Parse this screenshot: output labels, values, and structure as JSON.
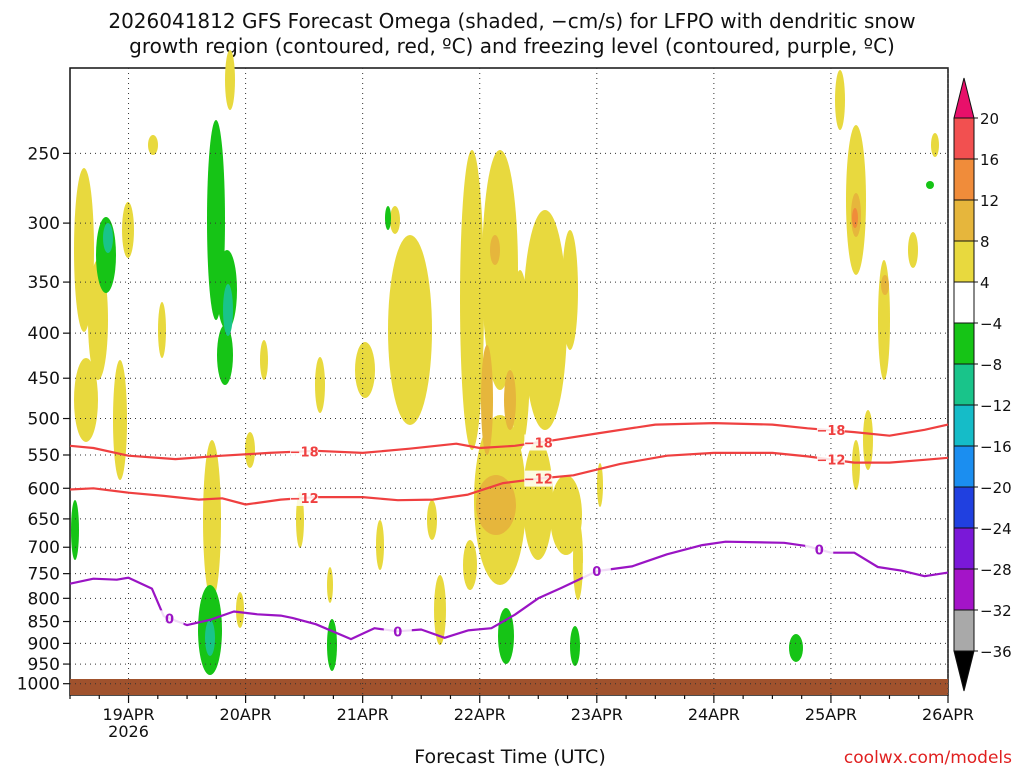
{
  "chart_data": {
    "type": "heatmap",
    "title_line1": "2026041812 GFS Forecast Omega (shaded, −cm/s) for LFPO with dendritic snow",
    "title_line2": "growth region (contoured, red, ºC) and freezing level (contoured, purple, ºC)",
    "xlabel": "Forecast Time (UTC)",
    "credit": "coolwx.com/models",
    "x_ticks": [
      {
        "t": 0,
        "label": "19APR",
        "sub": "2026"
      },
      {
        "t": 1,
        "label": "20APR",
        "sub": ""
      },
      {
        "t": 2,
        "label": "21APR",
        "sub": ""
      },
      {
        "t": 3,
        "label": "22APR",
        "sub": ""
      },
      {
        "t": 4,
        "label": "23APR",
        "sub": ""
      },
      {
        "t": 5,
        "label": "24APR",
        "sub": ""
      },
      {
        "t": 6,
        "label": "25APR",
        "sub": ""
      },
      {
        "t": 7,
        "label": "26APR",
        "sub": ""
      }
    ],
    "xlim": [
      -0.5,
      7.0
    ],
    "y_axis": "pressure (hPa), log scale, inverted",
    "ylim": [
      1030,
      200
    ],
    "y_ticks": [
      250,
      300,
      350,
      400,
      450,
      500,
      550,
      600,
      650,
      700,
      750,
      800,
      850,
      900,
      950,
      1000
    ],
    "grid": true,
    "colorbar": {
      "levels": [
        20,
        16,
        12,
        8,
        4,
        -4,
        -8,
        -12,
        -16,
        -20,
        -24,
        -28,
        -32,
        -36
      ],
      "colors": [
        "#e8106a",
        "#f25050",
        "#f08c3a",
        "#e6b63c",
        "#e8d93e",
        "#ffffff",
        "#16c416",
        "#19c48a",
        "#15bcc8",
        "#1b8ef0",
        "#2040e0",
        "#7a18d8",
        "#a414c8",
        "#a9a9a9",
        "#000000"
      ]
    },
    "contours": [
      {
        "value": -18,
        "color": "#ef4040",
        "labels_at": [
          1.5,
          3.5,
          6.0
        ],
        "points": [
          [
            -0.5,
            537
          ],
          [
            -0.3,
            540
          ],
          [
            0,
            551
          ],
          [
            0.4,
            556
          ],
          [
            0.8,
            551
          ],
          [
            1.2,
            547
          ],
          [
            1.6,
            544
          ],
          [
            2.0,
            547
          ],
          [
            2.4,
            541
          ],
          [
            2.8,
            534
          ],
          [
            3.0,
            540
          ],
          [
            3.3,
            537
          ],
          [
            3.6,
            530
          ],
          [
            4.0,
            520
          ],
          [
            4.5,
            508
          ],
          [
            5.0,
            506
          ],
          [
            5.5,
            508
          ],
          [
            5.8,
            513
          ],
          [
            6.2,
            518
          ],
          [
            6.5,
            523
          ],
          [
            6.8,
            515
          ],
          [
            7.0,
            508
          ]
        ]
      },
      {
        "value": -12,
        "color": "#ef4040",
        "labels_at": [
          1.5,
          3.5,
          6.0
        ],
        "points": [
          [
            -0.5,
            602
          ],
          [
            -0.3,
            600
          ],
          [
            0,
            607
          ],
          [
            0.3,
            612
          ],
          [
            0.6,
            618
          ],
          [
            0.8,
            616
          ],
          [
            1.0,
            626
          ],
          [
            1.3,
            618
          ],
          [
            1.6,
            614
          ],
          [
            2.0,
            614
          ],
          [
            2.3,
            619
          ],
          [
            2.6,
            618
          ],
          [
            2.9,
            610
          ],
          [
            3.2,
            592
          ],
          [
            3.5,
            585
          ],
          [
            3.8,
            580
          ],
          [
            4.2,
            563
          ],
          [
            4.6,
            551
          ],
          [
            5.0,
            547
          ],
          [
            5.5,
            547
          ],
          [
            5.8,
            552
          ],
          [
            6.2,
            561
          ],
          [
            6.5,
            561
          ],
          [
            6.8,
            557
          ],
          [
            7.0,
            554
          ]
        ]
      },
      {
        "value": 0,
        "color": "#9a14c4",
        "labels_at": [
          0.35,
          2.3,
          4.0,
          5.9
        ],
        "points": [
          [
            -0.5,
            770
          ],
          [
            -0.3,
            760
          ],
          [
            -0.1,
            762
          ],
          [
            0.0,
            758
          ],
          [
            0.2,
            780
          ],
          [
            0.3,
            838
          ],
          [
            0.5,
            858
          ],
          [
            0.7,
            846
          ],
          [
            0.9,
            828
          ],
          [
            1.1,
            834
          ],
          [
            1.3,
            837
          ],
          [
            1.4,
            842
          ],
          [
            1.6,
            856
          ],
          [
            1.9,
            890
          ],
          [
            2.1,
            865
          ],
          [
            2.3,
            872
          ],
          [
            2.5,
            868
          ],
          [
            2.7,
            887
          ],
          [
            2.9,
            870
          ],
          [
            3.1,
            865
          ],
          [
            3.3,
            835
          ],
          [
            3.5,
            800
          ],
          [
            3.7,
            778
          ],
          [
            4.0,
            745
          ],
          [
            4.3,
            736
          ],
          [
            4.6,
            713
          ],
          [
            4.9,
            696
          ],
          [
            5.1,
            690
          ],
          [
            5.6,
            692
          ],
          [
            5.8,
            698
          ],
          [
            6.0,
            710
          ],
          [
            6.2,
            710
          ],
          [
            6.4,
            737
          ],
          [
            6.6,
            744
          ],
          [
            6.8,
            755
          ],
          [
            7.0,
            748
          ]
        ]
      }
    ]
  }
}
